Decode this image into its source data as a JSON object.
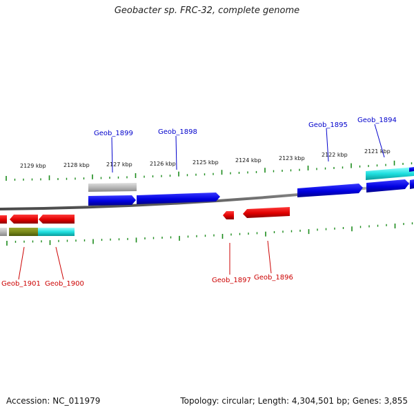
{
  "title": "Geobacter sp. FRC-32, complete genome",
  "footer": {
    "accession": "Accession: NC_011979",
    "summary": "Topology: circular; Length: 4,304,501 bp; Genes: 3,855"
  },
  "colors": {
    "forward_label": "#0000cc",
    "reverse_label": "#cc0000",
    "tick": "#1a8a1a",
    "backbone": "#8c8c8c"
  },
  "tick_labels": [
    {
      "text": "2129 kbp"
    },
    {
      "text": "2128 kbp"
    },
    {
      "text": "2127 kbp"
    },
    {
      "text": "2126 kbp"
    },
    {
      "text": "2125 kbp"
    },
    {
      "text": "2124 kbp"
    },
    {
      "text": "2123 kbp"
    },
    {
      "text": "2122 kbp"
    },
    {
      "text": "2121 kbp"
    }
  ],
  "gene_labels": {
    "forward": [
      {
        "text": "Geob_1899"
      },
      {
        "text": "Geob_1898"
      },
      {
        "text": "Geob_1895"
      },
      {
        "text": "Geob_1894"
      }
    ],
    "reverse": [
      {
        "text": "Geob_1901"
      },
      {
        "text": "Geob_1900"
      },
      {
        "text": "Geob_1897"
      },
      {
        "text": "Geob_1896"
      }
    ]
  }
}
